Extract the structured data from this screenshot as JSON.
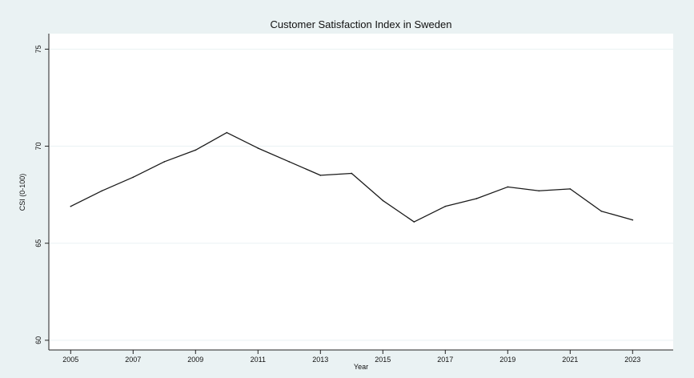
{
  "chart_data": {
    "type": "line",
    "title": "Customer Satisfaction Index in Sweden",
    "xlabel": "Year",
    "ylabel": "CSI (0-100)",
    "xlim": [
      2004.3,
      2024.3
    ],
    "ylim": [
      59.5,
      75.8
    ],
    "x_ticks": [
      2005,
      2007,
      2009,
      2011,
      2013,
      2015,
      2017,
      2019,
      2021,
      2023
    ],
    "y_ticks": [
      60,
      65,
      70,
      75
    ],
    "grid": true,
    "series": [
      {
        "x": [
          2005,
          2006,
          2007,
          2008,
          2009,
          2010,
          2011,
          2012,
          2013,
          2014,
          2015,
          2016,
          2017,
          2018,
          2019,
          2020,
          2021,
          2022,
          2023
        ],
        "values": [
          66.9,
          67.7,
          68.4,
          69.2,
          69.8,
          70.7,
          69.9,
          69.2,
          68.5,
          68.6,
          67.2,
          66.1,
          66.9,
          67.3,
          67.9,
          67.7,
          67.8,
          66.65,
          66.2
        ],
        "color": "#1a1a1a"
      }
    ]
  }
}
